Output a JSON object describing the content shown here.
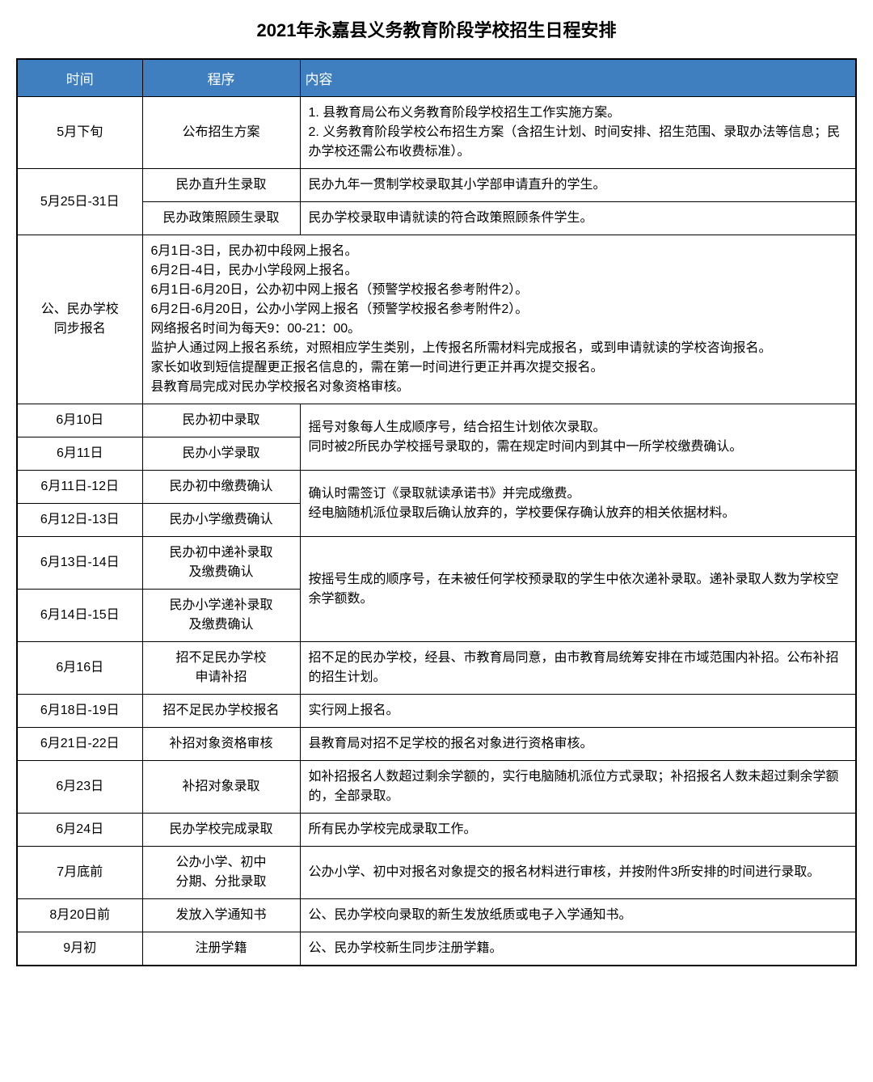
{
  "title": "2021年永嘉县义务教育阶段学校招生日程安排",
  "headers": {
    "time": "时间",
    "proc": "程序",
    "content": "内容"
  },
  "r1": {
    "time": "5月下旬",
    "proc": "公布招生方案",
    "content": "1. 县教育局公布义务教育阶段学校招生工作实施方案。\n2. 义务教育阶段学校公布招生方案（含招生计划、时间安排、招生范围、录取办法等信息；民办学校还需公布收费标准）。"
  },
  "r2": {
    "time": "5月25日-31日",
    "proc1": "民办直升生录取",
    "content1": "民办九年一贯制学校录取其小学部申请直升的学生。",
    "proc2": "民办政策照顾生录取",
    "content2": "民办学校录取申请就读的符合政策照顾条件学生。"
  },
  "r3": {
    "label": "公、民办学校\n同步报名",
    "content": "6月1日-3日，民办初中段网上报名。\n6月2日-4日，民办小学段网上报名。\n6月1日-6月20日，公办初中网上报名（预警学校报名参考附件2）。\n6月2日-6月20日，公办小学网上报名（预警学校报名参考附件2）。\n网络报名时间为每天9：00-21：00。\n监护人通过网上报名系统，对照相应学生类别，上传报名所需材料完成报名，或到申请就读的学校咨询报名。\n家长如收到短信提醒更正报名信息的，需在第一时间进行更正并再次提交报名。\n县教育局完成对民办学校报名对象资格审核。"
  },
  "r4": {
    "time1": "6月10日",
    "proc1": "民办初中录取",
    "time2": "6月11日",
    "proc2": "民办小学录取",
    "content": "摇号对象每人生成顺序号，结合招生计划依次录取。\n同时被2所民办学校摇号录取的，需在规定时间内到其中一所学校缴费确认。"
  },
  "r5": {
    "time1": "6月11日-12日",
    "proc1": "民办初中缴费确认",
    "time2": "6月12日-13日",
    "proc2": "民办小学缴费确认",
    "content": "确认时需签订《录取就读承诺书》并完成缴费。\n经电脑随机派位录取后确认放弃的，学校要保存确认放弃的相关依据材料。"
  },
  "r6": {
    "time1": "6月13日-14日",
    "proc1": "民办初中递补录取\n及缴费确认",
    "time2": "6月14日-15日",
    "proc2": "民办小学递补录取\n及缴费确认",
    "content": "按摇号生成的顺序号，在未被任何学校预录取的学生中依次递补录取。递补录取人数为学校空余学额数。"
  },
  "r7": {
    "time": "6月16日",
    "proc": "招不足民办学校\n申请补招",
    "content": "招不足的民办学校，经县、市教育局同意，由市教育局统筹安排在市域范围内补招。公布补招的招生计划。"
  },
  "r8": {
    "time": "6月18日-19日",
    "proc": "招不足民办学校报名",
    "content": "实行网上报名。"
  },
  "r9": {
    "time": "6月21日-22日",
    "proc": "补招对象资格审核",
    "content": "县教育局对招不足学校的报名对象进行资格审核。"
  },
  "r10": {
    "time": "6月23日",
    "proc": "补招对象录取",
    "content": "如补招报名人数超过剩余学额的，实行电脑随机派位方式录取；补招报名人数未超过剩余学额的，全部录取。"
  },
  "r11": {
    "time": "6月24日",
    "proc": "民办学校完成录取",
    "content": "所有民办学校完成录取工作。"
  },
  "r12": {
    "time": "7月底前",
    "proc": "公办小学、初中\n分期、分批录取",
    "content": "公办小学、初中对报名对象提交的报名材料进行审核，并按附件3所安排的时间进行录取。"
  },
  "r13": {
    "time": "8月20日前",
    "proc": "发放入学通知书",
    "content": "公、民办学校向录取的新生发放纸质或电子入学通知书。"
  },
  "r14": {
    "time": "9月初",
    "proc": "注册学籍",
    "content": "公、民办学校新生同步注册学籍。"
  },
  "styling": {
    "header_bg": "#3f7fbf",
    "header_text_color": "#ffffff",
    "border_color": "#000000",
    "body_bg": "#ffffff",
    "font_family": "Microsoft YaHei",
    "title_fontsize": 22,
    "cell_fontsize": 16,
    "col_widths": {
      "time": 155,
      "proc": 195
    }
  }
}
